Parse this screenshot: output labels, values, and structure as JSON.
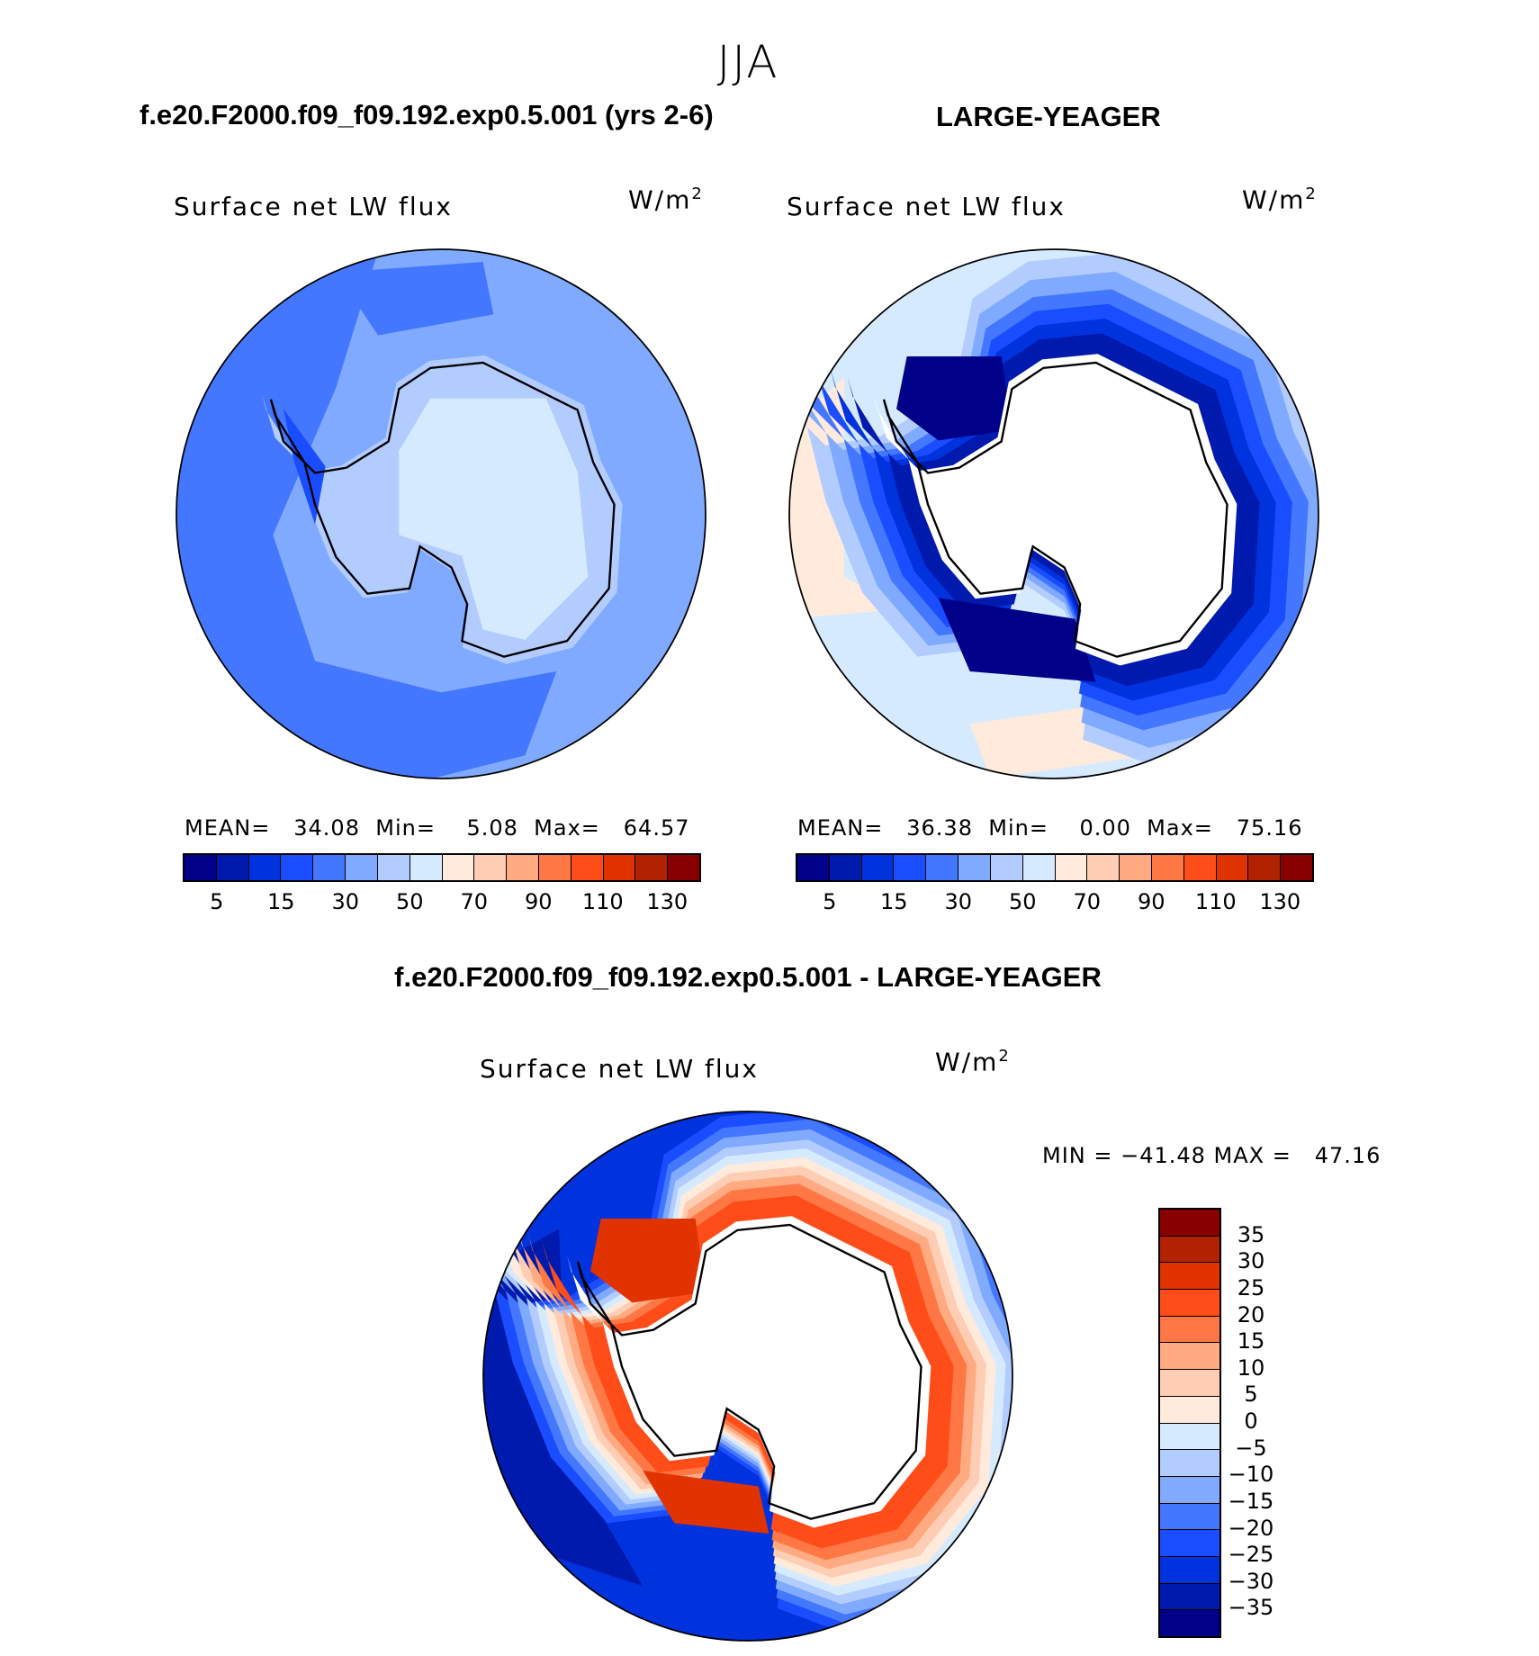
{
  "title": "JJA",
  "panels": {
    "left": {
      "title": "f.e20.F2000.f09_f09.192.exp0.5.001 (yrs 2-6)",
      "variable": "Surface net LW flux",
      "units_base": "W/m",
      "units_exp": "2",
      "stats": {
        "mean_label": "MEAN=",
        "mean": "34.08",
        "min_label": "Min=",
        "min": "5.08",
        "max_label": "Max=",
        "max": "64.57"
      }
    },
    "right": {
      "title": "LARGE-YEAGER",
      "variable": "Surface net LW flux",
      "units_base": "W/m",
      "units_exp": "2",
      "stats": {
        "mean_label": "MEAN=",
        "mean": "36.38",
        "min_label": "Min=",
        "min": "0.00",
        "max_label": "Max=",
        "max": "75.16"
      }
    },
    "diff": {
      "title": "f.e20.F2000.f09_f09.192.exp0.5.001 - LARGE-YEAGER",
      "variable": "Surface net LW flux",
      "units_base": "W/m",
      "units_exp": "2",
      "minmax": "MIN = −41.48 MAX =   47.16"
    }
  },
  "colorbar_colors": [
    "#000088",
    "#001aad",
    "#0033dd",
    "#1a4dff",
    "#4477ff",
    "#80aaff",
    "#b3ccff",
    "#d6eaff",
    "#ffeadb",
    "#ffcdb3",
    "#ffaa80",
    "#ff7744",
    "#ff4d1a",
    "#e03300",
    "#b32200",
    "#880000"
  ],
  "chart_data": [
    {
      "type": "heatmap",
      "projection": "south polar stereographic",
      "title": "f.e20.F2000.f09_f09.192.exp0.5.001 (yrs 2-6)",
      "variable": "Surface net LW flux",
      "units": "W/m2",
      "mean": 34.08,
      "min": 5.08,
      "max": 64.57,
      "colorbar_ticks": [
        "5",
        "15",
        "30",
        "50",
        "70",
        "90",
        "110",
        "130"
      ]
    },
    {
      "type": "heatmap",
      "projection": "south polar stereographic",
      "title": "LARGE-YEAGER",
      "variable": "Surface net LW flux",
      "units": "W/m2",
      "mean": 36.38,
      "min": 0.0,
      "max": 75.16,
      "colorbar_ticks": [
        "5",
        "15",
        "30",
        "50",
        "70",
        "90",
        "110",
        "130"
      ]
    },
    {
      "type": "heatmap",
      "projection": "south polar stereographic",
      "title": "f.e20.F2000.f09_f09.192.exp0.5.001 - LARGE-YEAGER",
      "variable": "Surface net LW flux",
      "units": "W/m2",
      "min": -41.48,
      "max": 47.16,
      "colorbar_ticks": [
        "35",
        "30",
        "25",
        "20",
        "15",
        "10",
        "5",
        "0",
        "−5",
        "−10",
        "−15",
        "−20",
        "−25",
        "−30",
        "−35"
      ]
    }
  ]
}
